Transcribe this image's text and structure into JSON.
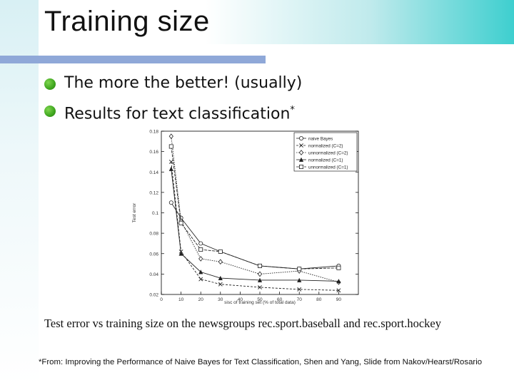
{
  "slide": {
    "title": "Training size",
    "bullets": [
      {
        "text": "The more the better! (usually)",
        "sup": ""
      },
      {
        "text": "Results for text classification",
        "sup": "*"
      }
    ],
    "caption": "Test error vs training size on the newsgroups rec.sport.baseball and rec.sport.hockey",
    "footnote": "*From: Improving the Performance of Naive Bayes for Text Classification, Shen and Yang, Slide from Nakov/Hearst/Rosario"
  },
  "colors": {
    "accent_teal": "#3ecfcf",
    "underline_blue": "#8fa8d8",
    "bullet_green": "#3ea51e",
    "series_line": "#222222"
  },
  "chart_data": {
    "type": "line",
    "xlabel": "sisc of training set (% of total data)",
    "ylabel": "Test error",
    "xlim": [
      0,
      100
    ],
    "ylim": [
      0.02,
      0.18
    ],
    "xticks": [
      "0",
      "10",
      "20",
      "30",
      "40",
      "50",
      "60",
      "70",
      "80",
      "90"
    ],
    "yticks": [
      "0.02",
      "0.04",
      "0.06",
      "0.08",
      "0.1",
      "0.12",
      "0.14",
      "0.16",
      "0.18"
    ],
    "legend_position": "top-right",
    "grid": false,
    "x": [
      5,
      10,
      20,
      30,
      50,
      70,
      90
    ],
    "series": [
      {
        "name": "naive Bayes",
        "marker": "circle",
        "values": [
          0.11,
          0.095,
          0.07,
          0.062,
          0.048,
          0.045,
          0.048
        ]
      },
      {
        "name": "normalized (C=2)",
        "marker": "x",
        "values": [
          0.15,
          0.062,
          0.035,
          0.03,
          0.027,
          0.025,
          0.024
        ]
      },
      {
        "name": "unnormalized (C=2)",
        "marker": "diamond",
        "values": [
          0.175,
          0.092,
          0.055,
          0.052,
          0.04,
          0.043,
          0.032
        ]
      },
      {
        "name": "normalized (C=1)",
        "marker": "triangle",
        "values": [
          0.143,
          0.06,
          0.042,
          0.036,
          0.034,
          0.034,
          0.033
        ]
      },
      {
        "name": "unnormalized (C=1)",
        "marker": "square",
        "values": [
          0.165,
          0.09,
          0.064,
          0.062,
          0.048,
          0.045,
          0.046
        ]
      }
    ]
  }
}
